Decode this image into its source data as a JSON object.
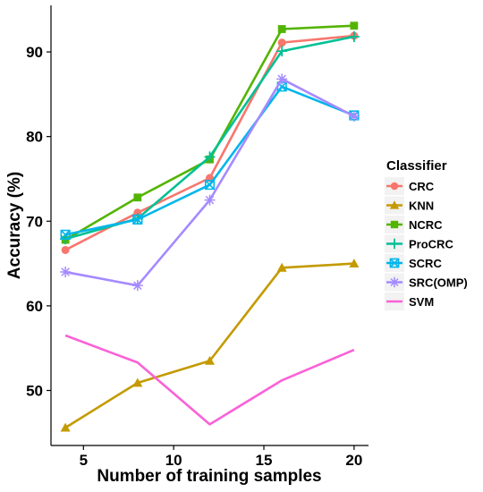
{
  "chart_data": {
    "type": "line",
    "xlabel": "Number of training samples",
    "ylabel": "Accuracy (%)",
    "xlim": [
      3.2,
      20.8
    ],
    "ylim": [
      43.5,
      95.5
    ],
    "xticks": [
      5,
      10,
      15,
      20
    ],
    "yticks": [
      50,
      60,
      70,
      80,
      90
    ],
    "grid": false,
    "legend_title": "Classifier",
    "legend_position": "right",
    "x": [
      4,
      8,
      12,
      16,
      20
    ],
    "series": [
      {
        "name": "CRC",
        "color": "#F8766D",
        "marker": "circle",
        "values": [
          66.6,
          71.0,
          75.1,
          91.1,
          91.9
        ]
      },
      {
        "name": "KNN",
        "color": "#C49A00",
        "marker": "triangle",
        "values": [
          45.6,
          50.9,
          53.5,
          64.5,
          65.0
        ]
      },
      {
        "name": "NCRC",
        "color": "#53B400",
        "marker": "square",
        "values": [
          67.8,
          72.8,
          77.3,
          92.7,
          93.1
        ]
      },
      {
        "name": "ProCRC",
        "color": "#00C094",
        "marker": "plus",
        "values": [
          67.9,
          70.3,
          77.6,
          90.1,
          91.8
        ]
      },
      {
        "name": "SCRC",
        "color": "#00B6EB",
        "marker": "boxcross",
        "values": [
          68.4,
          70.2,
          74.3,
          85.9,
          82.5
        ]
      },
      {
        "name": "SRC(OMP)",
        "color": "#A58AFF",
        "marker": "asterisk",
        "values": [
          64.0,
          62.4,
          72.5,
          86.8,
          82.4
        ]
      },
      {
        "name": "SVM",
        "color": "#FB61D7",
        "marker": "none",
        "values": [
          56.5,
          53.3,
          46.0,
          51.2,
          54.8
        ]
      }
    ]
  }
}
